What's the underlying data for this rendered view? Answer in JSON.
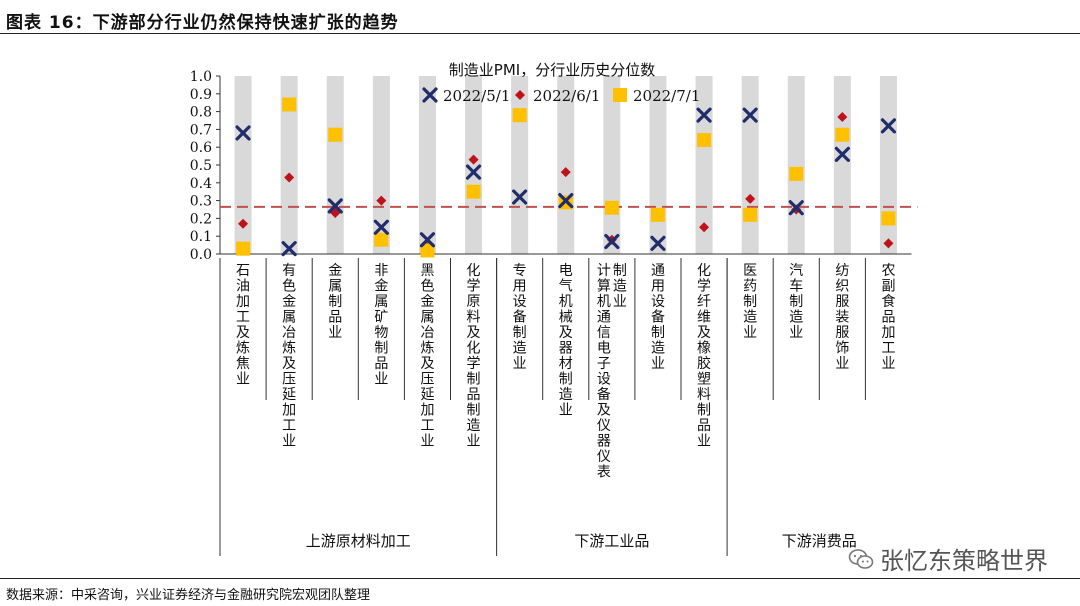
{
  "figure_title": "图表 16：下游部分行业仍然保持快速扩张的趋势",
  "source_note": "数据来源：中采咨询，兴业证券经济与金融研究院宏观团队整理",
  "watermark": "张忆东策略世界",
  "colors": {
    "series_1": "#1f2d6b",
    "series_2": "#c0121a",
    "series_3": "#ffc000",
    "bar": "#d9d9d9",
    "reference_line": "#c0504d"
  },
  "chart_data": {
    "type": "scatter",
    "title": "制造业PMI，分行业历史分位数",
    "xlabel": "",
    "ylabel": "",
    "ylim": [
      0,
      1.0
    ],
    "yticks": [
      "0.0",
      "0.1",
      "0.2",
      "0.3",
      "0.4",
      "0.5",
      "0.6",
      "0.7",
      "0.8",
      "0.9",
      "1.0"
    ],
    "categories": [
      "石油加工及炼焦业",
      "有色金属冶炼及压延加工业",
      "金属制品业",
      "非金属矿物制品业",
      "黑色金属冶炼及压延加工业",
      "化学原料及化学制品制造业",
      "专用设备制造业",
      "电气机械及器材制造业",
      "计算机通信电子设备及仪器仪表制造业",
      "通用设备制造业",
      "化学纤维及橡胶塑料制品业",
      "医药制造业",
      "汽车制造业",
      "纺织服装服饰业",
      "农副食品加工业"
    ],
    "series": [
      {
        "name": "2022/5/1",
        "marker": "x",
        "values": [
          0.68,
          0.03,
          0.27,
          0.15,
          0.08,
          0.46,
          0.32,
          0.3,
          0.07,
          0.06,
          0.78,
          0.78,
          0.26,
          0.56,
          0.72
        ]
      },
      {
        "name": "2022/6/1",
        "marker": "diamond",
        "values": [
          0.17,
          0.43,
          0.23,
          0.3,
          0.04,
          0.53,
          0.79,
          0.46,
          0.08,
          0.21,
          0.15,
          0.31,
          0.25,
          0.77,
          0.06
        ]
      },
      {
        "name": "2022/7/1",
        "marker": "square",
        "values": [
          0.03,
          0.84,
          0.67,
          0.08,
          0.02,
          0.35,
          0.78,
          0.29,
          0.26,
          0.22,
          0.64,
          0.22,
          0.45,
          0.67,
          0.2
        ]
      }
    ],
    "bar_value": 1.0,
    "reference_line": 0.265,
    "groups": [
      {
        "label": "上游原材料加工",
        "count": 6
      },
      {
        "label": "下游工业品",
        "count": 5
      },
      {
        "label": "下游消费品",
        "count": 4
      }
    ]
  }
}
